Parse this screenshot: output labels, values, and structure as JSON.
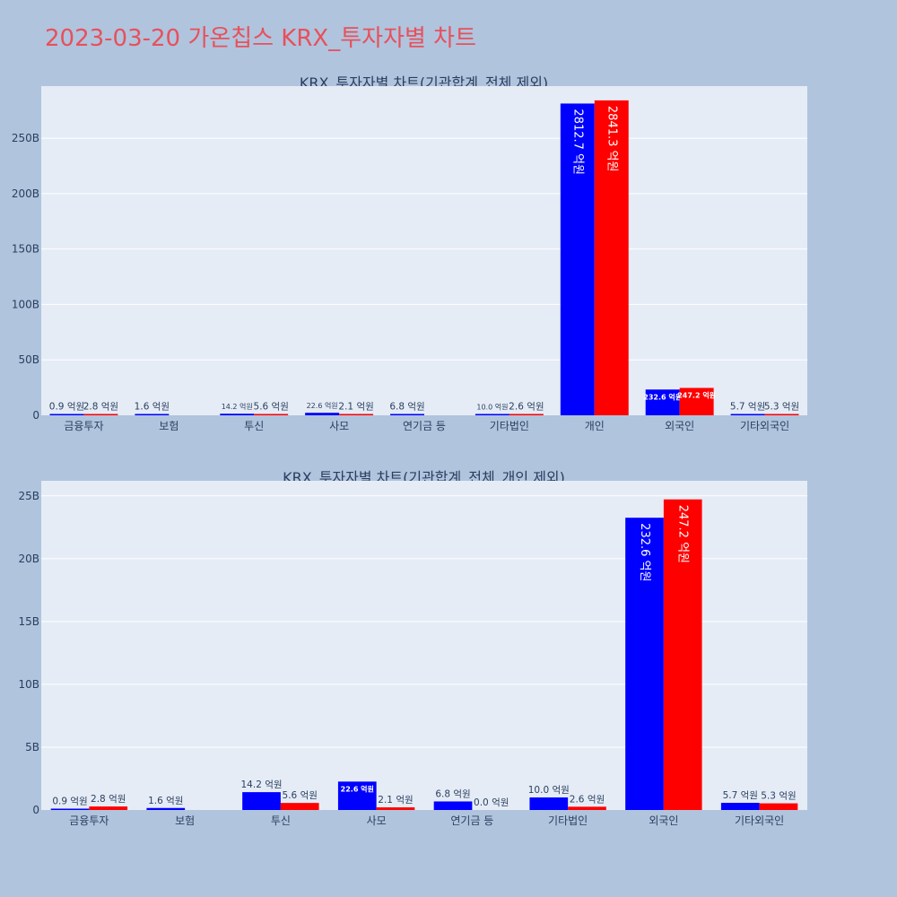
{
  "page_title": "2023-03-20 가온칩스 KRX_투자자별 차트",
  "colors": {
    "series_a": "#0000ff",
    "series_b": "#ff0000",
    "plot_bg": "#e5ecf6",
    "page_bg": "#b0c4de",
    "title": "#e8505b"
  },
  "chart_data": [
    {
      "type": "bar",
      "title": "KRX_투자자별 차트(기관합계_전체 제외)",
      "categories": [
        "금융투자",
        "보험",
        "투신",
        "사모",
        "연기금 등",
        "기타법인",
        "개인",
        "외국인",
        "기타외국인"
      ],
      "series": [
        {
          "values": [
            0.09,
            0.16,
            1.42,
            2.26,
            0.68,
            1.0,
            281.27,
            23.26,
            0.57
          ],
          "labels": [
            "0.9 억원",
            "1.6 억원",
            "14.2 억원",
            "22.6 억원",
            "6.8 억원",
            "10.0 억원",
            "2812.7 억원",
            "232.6 억원",
            "5.7 억원"
          ]
        },
        {
          "values": [
            0.28,
            null,
            0.56,
            0.21,
            null,
            0.26,
            284.13,
            24.72,
            0.53
          ],
          "labels": [
            "2.8 억원",
            "",
            "5.6 억원",
            "2.1 억원",
            "",
            "2.6 억원",
            "2841.3 억원",
            "247.2 억원",
            "5.3 억원"
          ]
        }
      ],
      "yticks": [
        "0",
        "50B",
        "100B",
        "150B",
        "200B",
        "250B"
      ],
      "ytick_values": [
        0,
        50,
        100,
        150,
        200,
        250
      ],
      "ylim": [
        0,
        297
      ],
      "grid": true
    },
    {
      "type": "bar",
      "title": "KRX_투자자별 차트(기관합계_전체_개인 제외)",
      "categories": [
        "금융투자",
        "보험",
        "투신",
        "사모",
        "연기금 등",
        "기타법인",
        "외국인",
        "기타외국인"
      ],
      "series": [
        {
          "values": [
            0.09,
            0.16,
            1.42,
            2.26,
            0.68,
            1.0,
            23.26,
            0.57
          ],
          "labels": [
            "0.9 억원",
            "1.6 억원",
            "14.2 억원",
            "22.6 억원",
            "6.8 억원",
            "10.0 억원",
            "232.6 억원",
            "5.7 억원"
          ]
        },
        {
          "values": [
            0.28,
            null,
            0.56,
            0.21,
            0.0,
            0.26,
            24.72,
            0.53
          ],
          "labels": [
            "2.8 억원",
            "",
            "5.6 억원",
            "2.1 억원",
            "0.0 억원",
            "2.6 억원",
            "247.2 억원",
            "5.3 억원"
          ]
        }
      ],
      "yticks": [
        "0",
        "5B",
        "10B",
        "15B",
        "20B",
        "25B"
      ],
      "ytick_values": [
        0,
        5,
        10,
        15,
        20,
        25
      ],
      "ylim": [
        0,
        26.2
      ],
      "grid": true
    }
  ]
}
